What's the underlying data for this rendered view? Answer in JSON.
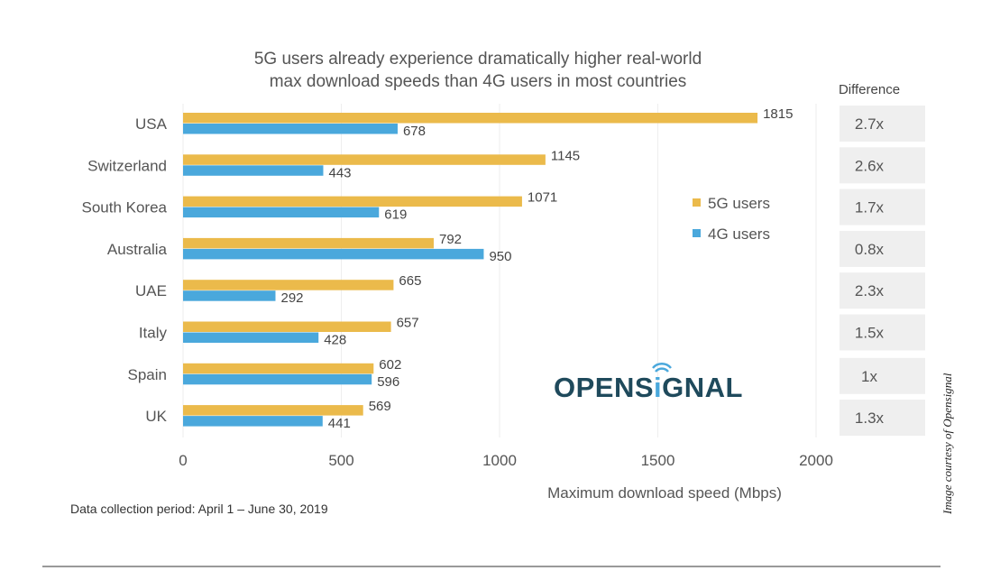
{
  "chart_data": {
    "type": "bar",
    "orientation": "horizontal",
    "title": "5G users already experience dramatically higher real-world max download speeds than 4G users in most countries",
    "title_lines": [
      "5G users already experience dramatically higher real-world",
      "max download speeds than 4G users in most countries"
    ],
    "categories": [
      "USA",
      "Switzerland",
      "South Korea",
      "Australia",
      "UAE",
      "Italy",
      "Spain",
      "UK"
    ],
    "series": [
      {
        "name": "5G users",
        "color": "#EBBA4B",
        "values": [
          1815,
          1145,
          1071,
          792,
          665,
          657,
          602,
          569
        ]
      },
      {
        "name": "4G users",
        "color": "#4AA8DC",
        "values": [
          678,
          443,
          619,
          950,
          292,
          428,
          596,
          441
        ]
      }
    ],
    "difference_header": "Difference",
    "difference": [
      "2.7x",
      "2.6x",
      "1.7x",
      "0.8x",
      "2.3x",
      "1.5x",
      "1x",
      "1.3x"
    ],
    "xlabel": "Maximum download speed  (Mbps)",
    "xlim": [
      0,
      2000
    ],
    "xticks": [
      0,
      500,
      1000,
      1500,
      2000
    ],
    "grid": true,
    "legend_position": "center-right"
  },
  "footnote": "Data collection period: April 1 – June 30, 2019",
  "logo": "OPENSIGNAL",
  "credit": "Image courtesy of Opensignal"
}
